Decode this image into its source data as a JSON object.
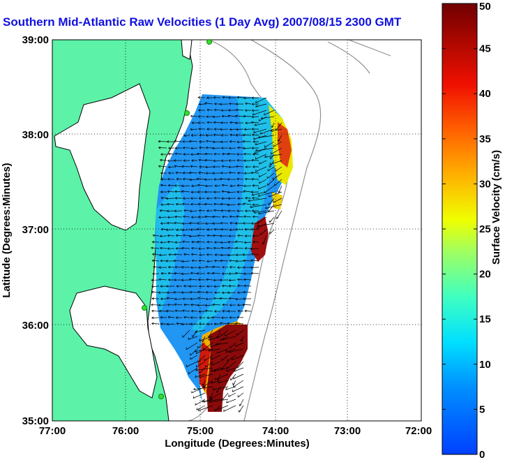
{
  "title": "Southern Mid-Atlantic Raw Velocities (1 Day Avg) 2007/08/15 2300 GMT",
  "xlabel": "Longitude (Degrees:Minutes)",
  "ylabel": "Latitude (Degrees:Minutes)",
  "x_ticks": [
    "77:00",
    "76:00",
    "75:00",
    "74:00",
    "73:00",
    "72:00"
  ],
  "y_ticks": [
    "39:00",
    "38:00",
    "37:00",
    "36:00",
    "35:00"
  ],
  "colorbar": {
    "label": "Surface Velocity (cm/s)",
    "ticks": [
      "0",
      "5",
      "10",
      "15",
      "20",
      "25",
      "30",
      "35",
      "40",
      "45",
      "50"
    ],
    "min": 0,
    "max": 50
  },
  "colors": {
    "title": "#1010e0",
    "land": "#5cf2a8",
    "water": "#ffffff",
    "coast": "#000000",
    "bathymetry": "#909090",
    "station": "#33dd33"
  },
  "chart_data": {
    "type": "map",
    "xlim": [
      -77,
      -72
    ],
    "ylim": [
      35,
      39
    ],
    "colorbar_range": [
      0,
      50
    ],
    "grid": true,
    "stations": [
      {
        "lon": -74.9,
        "lat": 39.0
      },
      {
        "lon": -75.9,
        "lat": 38.25
      },
      {
        "lon": -75.85,
        "lat": 36.17
      },
      {
        "lon": -75.5,
        "lat": 35.25
      }
    ],
    "velocity_field_regions": [
      {
        "lon": -75.25,
        "lat": 37.5,
        "speed": 8
      },
      {
        "lon": -75.1,
        "lat": 36.6,
        "speed": 8
      },
      {
        "lon": -74.6,
        "lat": 37.9,
        "speed": 14
      },
      {
        "lon": -74.05,
        "lat": 37.9,
        "speed": 38
      },
      {
        "lon": -74.15,
        "lat": 36.85,
        "speed": 48
      },
      {
        "lon": -74.65,
        "lat": 35.45,
        "speed": 50
      }
    ]
  }
}
